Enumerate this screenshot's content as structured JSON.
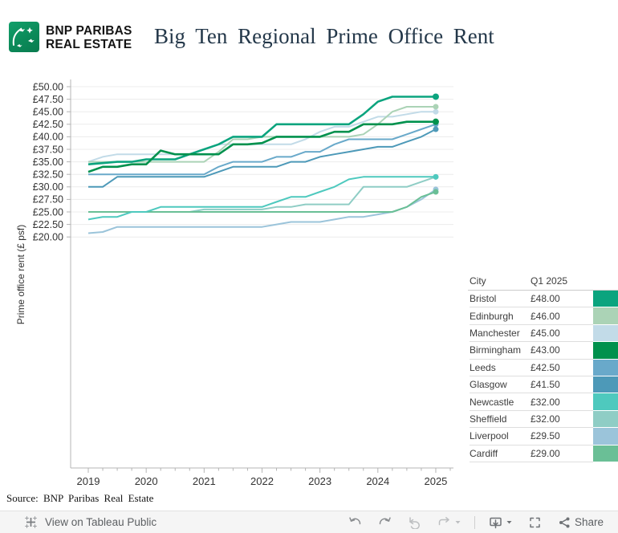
{
  "header": {
    "logo_line1": "BNP PARIBAS",
    "logo_line2": "REAL ESTATE",
    "title": "Big Ten Regional Prime Office Rent"
  },
  "chart_data": {
    "type": "line",
    "title": "Big Ten Regional Prime Office Rent",
    "xlabel": "",
    "ylabel": "Prime office rent (£ psf)",
    "ylim": [
      20,
      50
    ],
    "ytick_step": 2.5,
    "ytick_labels": [
      "£20.00",
      "£22.50",
      "£25.00",
      "£27.50",
      "£30.00",
      "£32.50",
      "£35.00",
      "£37.50",
      "£40.00",
      "£42.50",
      "£45.00",
      "£47.50",
      "£50.00"
    ],
    "xtick_labels": [
      "2019",
      "2020",
      "2021",
      "2022",
      "2023",
      "2024",
      "2025"
    ],
    "x_frequency": "quarterly",
    "x_quarters": [
      "2019 Q1",
      "2019 Q2",
      "2019 Q3",
      "2019 Q4",
      "2020 Q1",
      "2020 Q2",
      "2020 Q3",
      "2020 Q4",
      "2021 Q1",
      "2021 Q2",
      "2021 Q3",
      "2021 Q4",
      "2022 Q1",
      "2022 Q2",
      "2022 Q3",
      "2022 Q4",
      "2023 Q1",
      "2023 Q2",
      "2023 Q3",
      "2023 Q4",
      "2024 Q1",
      "2024 Q2",
      "2024 Q3",
      "2024 Q4",
      "2025 Q1"
    ],
    "grid": true,
    "legend_position": "right-table",
    "series": [
      {
        "name": "Manchester",
        "color": "#c2dbe8",
        "values": [
          35,
          36,
          36.5,
          36.5,
          36.5,
          36.5,
          36.5,
          36.5,
          37.5,
          38.5,
          38.5,
          38.5,
          38.5,
          38.5,
          38.5,
          39.5,
          41,
          42,
          42,
          43,
          44,
          44,
          44.5,
          45,
          45
        ]
      },
      {
        "name": "Edinburgh",
        "color": "#abd3b6",
        "values": [
          35,
          35,
          35,
          35,
          35,
          35,
          35,
          35,
          35,
          37,
          39.5,
          39.5,
          40,
          40,
          40,
          40,
          40,
          40,
          40,
          40.5,
          42.5,
          45,
          46,
          46,
          46
        ]
      },
      {
        "name": "Liverpool",
        "color": "#9bc4da",
        "values": [
          20.75,
          21,
          22,
          22,
          22,
          22,
          22,
          22,
          22,
          22,
          22,
          22,
          22,
          22.5,
          23,
          23,
          23,
          23.5,
          24,
          24,
          24.5,
          25,
          26,
          27.5,
          29.5
        ]
      },
      {
        "name": "Sheffield",
        "color": "#8fcdc5",
        "values": [
          25,
          25,
          25,
          25,
          25,
          25,
          25,
          25,
          25.5,
          25.5,
          25.5,
          25.5,
          25.5,
          26,
          26,
          26.5,
          26.5,
          26.5,
          26.5,
          30,
          30,
          30,
          30,
          31,
          32
        ]
      },
      {
        "name": "Cardiff",
        "color": "#6abf96",
        "values": [
          25,
          25,
          25,
          25,
          25,
          25,
          25,
          25,
          25,
          25,
          25,
          25,
          25,
          25,
          25,
          25,
          25,
          25,
          25,
          25,
          25,
          25,
          26,
          28,
          29
        ]
      },
      {
        "name": "Newcastle",
        "color": "#4ec9be",
        "values": [
          23.5,
          24,
          24,
          25,
          25,
          26,
          26,
          26,
          26,
          26,
          26,
          26,
          26,
          27,
          28,
          28,
          29,
          30,
          31.5,
          32,
          32,
          32,
          32,
          32,
          32
        ]
      },
      {
        "name": "Leeds",
        "color": "#69a9ca",
        "values": [
          32.5,
          32.5,
          32.5,
          32.5,
          32.5,
          32.5,
          32.5,
          32.5,
          32.5,
          34,
          35,
          35,
          35,
          36,
          36,
          37,
          37,
          38.5,
          39.5,
          39.5,
          39.5,
          39.5,
          40.5,
          41.5,
          42.5
        ]
      },
      {
        "name": "Glasgow",
        "color": "#4d99b8",
        "values": [
          30,
          30,
          32,
          32,
          32,
          32,
          32,
          32,
          32,
          33,
          34,
          34,
          34,
          34,
          35,
          35,
          36,
          36.5,
          37,
          37.5,
          38,
          38,
          39,
          40,
          41.5
        ]
      },
      {
        "name": "Bristol",
        "color": "#0ba47e",
        "values": [
          34.5,
          34.75,
          35,
          35,
          35.5,
          35.5,
          35.5,
          36.5,
          37.5,
          38.5,
          40,
          40,
          40,
          42.5,
          42.5,
          42.5,
          42.5,
          42.5,
          42.5,
          44.5,
          47,
          48,
          48,
          48,
          48
        ]
      },
      {
        "name": "Birmingham",
        "color": "#00914d",
        "values": [
          33,
          34,
          34,
          34.5,
          34.5,
          37.25,
          36.5,
          36.5,
          36.5,
          36.5,
          38.5,
          38.5,
          38.75,
          40,
          40,
          40,
          40,
          41,
          41,
          42.5,
          42.5,
          42.5,
          43,
          43,
          43
        ]
      }
    ]
  },
  "legend_table": {
    "columns": [
      "City",
      "Q1 2025"
    ],
    "rows": [
      {
        "city": "Bristol",
        "value": "£48.00",
        "color": "#0ba47e"
      },
      {
        "city": "Edinburgh",
        "value": "£46.00",
        "color": "#abd3b6"
      },
      {
        "city": "Manchester",
        "value": "£45.00",
        "color": "#c2dbe8"
      },
      {
        "city": "Birmingham",
        "value": "£43.00",
        "color": "#00914d"
      },
      {
        "city": "Leeds",
        "value": "£42.50",
        "color": "#69a9ca"
      },
      {
        "city": "Glasgow",
        "value": "£41.50",
        "color": "#4d99b8"
      },
      {
        "city": "Newcastle",
        "value": "£32.00",
        "color": "#4ec9be"
      },
      {
        "city": "Sheffield",
        "value": "£32.00",
        "color": "#8fcdc5"
      },
      {
        "city": "Liverpool",
        "value": "£29.50",
        "color": "#9bc4da"
      },
      {
        "city": "Cardiff",
        "value": "£29.00",
        "color": "#6abf96"
      }
    ]
  },
  "source_note": "Source: BNP Paribas Real Estate",
  "toolbar": {
    "view_label": "View on Tableau Public",
    "share_label": "Share",
    "icon_names": [
      "undo-icon",
      "redo-icon",
      "revert-icon",
      "refresh-icon",
      "download-icon",
      "fullscreen-icon",
      "share-icon"
    ],
    "colors": {
      "icon_active": "#6f7276",
      "icon_disabled": "#bdbfc1",
      "toolbar_bg": "#f5f5f5"
    }
  }
}
